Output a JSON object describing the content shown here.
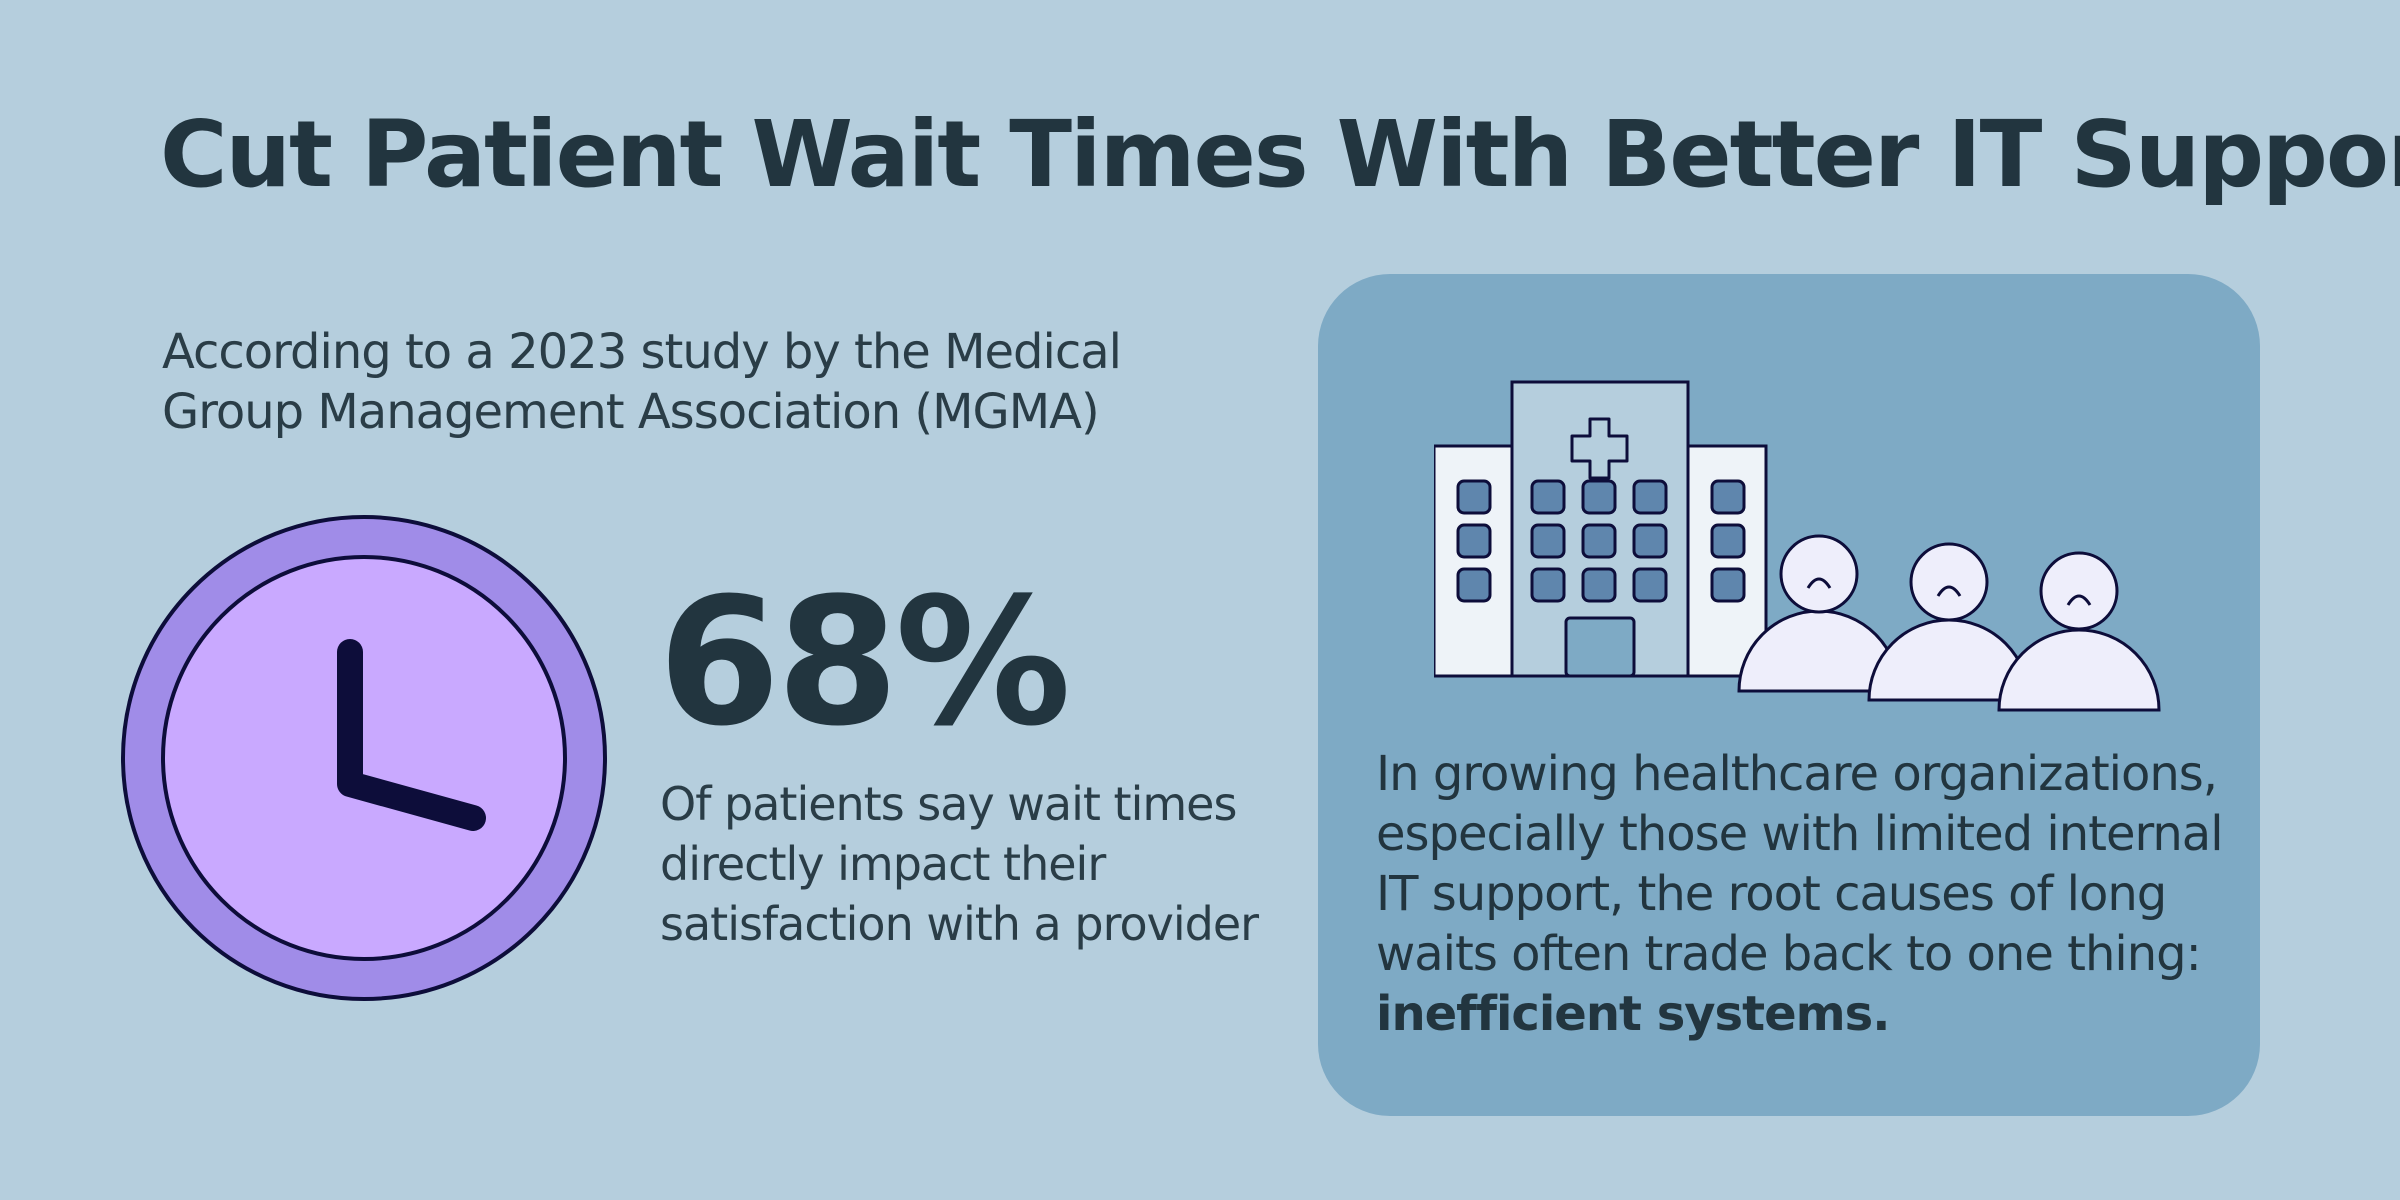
{
  "title": "Cut Patient Wait Times With Better IT Support",
  "source": {
    "line1": "According to a 2023 study by the Medical",
    "line2": "Group Management Association (MGMA)"
  },
  "stat": {
    "value": "68%",
    "line1": "Of patients say wait times",
    "line2": "directly impact their",
    "line3": "satisfaction with a provider"
  },
  "panel": {
    "line1": "In growing healthcare organizations,",
    "line2": "especially those with limited internal",
    "line3": "IT support, the root causes of long",
    "line4": "waits often trade back to one thing:",
    "emphasis": "inefficient systems."
  },
  "icons": [
    "clock-icon",
    "hospital-icon",
    "sad-person-icon"
  ],
  "colors": {
    "background": "#b5cedd",
    "panel": "#7eaac5",
    "text": "#22353f",
    "clock_outer": "#a08ce8",
    "clock_inner": "#c9a9ff",
    "outline": "#0d0d3a"
  }
}
